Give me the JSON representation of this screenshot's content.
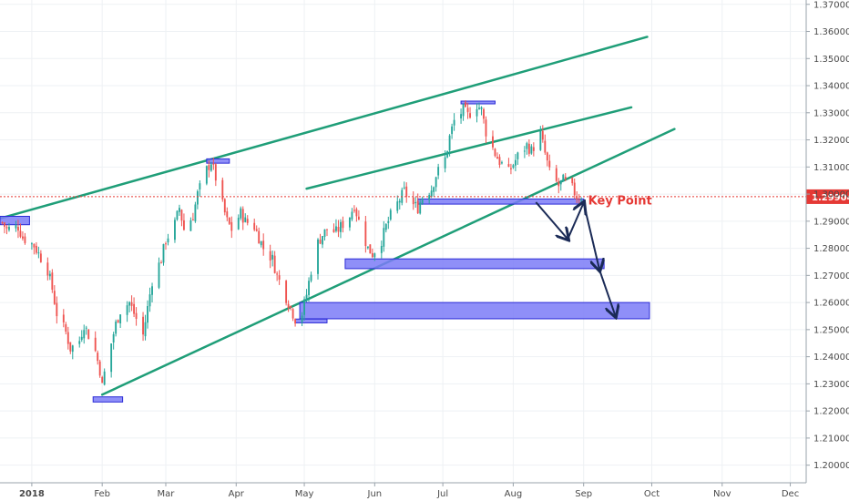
{
  "chart_data": {
    "type": "candlestick",
    "title": "",
    "xlabel": "",
    "ylabel": "",
    "x_tick_labels": [
      "2018",
      "Feb",
      "Mar",
      "Apr",
      "May",
      "Jun",
      "Jul",
      "Aug",
      "Sep",
      "Oct",
      "Nov",
      "Dec"
    ],
    "x_tick_dates": [
      "2018-01-01",
      "2018-02-01",
      "2018-03-01",
      "2018-04-01",
      "2018-05-01",
      "2018-06-01",
      "2018-07-01",
      "2018-08-01",
      "2018-09-01",
      "2018-10-01",
      "2018-11-01",
      "2018-12-01"
    ],
    "x_range": [
      "2017-12-18",
      "2018-12-08"
    ],
    "y_tick_labels": [
      "1.20000",
      "1.21000",
      "1.22000",
      "1.23000",
      "1.24000",
      "1.25000",
      "1.26000",
      "1.27000",
      "1.28000",
      "1.29000",
      "1.30000",
      "1.31000",
      "1.32000",
      "1.33000",
      "1.34000",
      "1.35000",
      "1.36000",
      "1.37000"
    ],
    "y_range": [
      1.1935,
      1.3716
    ],
    "grid": true,
    "current_price": {
      "value": 1.29904,
      "label": "1.29904",
      "color": "#e53935"
    },
    "colors": {
      "up": "#26a69a",
      "down": "#ef5350",
      "trendline": "#1f9e78",
      "zone_fill": "#7b7bf7",
      "zone_edge": "#2b2bd6",
      "arrow": "#1a2a56",
      "annotation": "#e53935"
    },
    "closes": [
      [
        "2017-12-19",
        1.2895
      ],
      [
        "2017-12-21",
        1.287
      ],
      [
        "2017-12-26",
        1.288
      ],
      [
        "2017-12-28",
        1.284
      ],
      [
        "2018-01-02",
        1.281
      ],
      [
        "2018-01-04",
        1.278
      ],
      [
        "2018-01-08",
        1.272
      ],
      [
        "2018-01-10",
        1.265
      ],
      [
        "2018-01-12",
        1.256
      ],
      [
        "2018-01-16",
        1.249
      ],
      [
        "2018-01-18",
        1.243
      ],
      [
        "2018-01-22",
        1.246
      ],
      [
        "2018-01-24",
        1.252
      ],
      [
        "2018-01-26",
        1.248
      ],
      [
        "2018-01-29",
        1.242
      ],
      [
        "2018-01-31",
        1.235
      ],
      [
        "2018-02-01",
        1.229
      ],
      [
        "2018-02-02",
        1.234
      ],
      [
        "2018-02-05",
        1.245
      ],
      [
        "2018-02-07",
        1.252
      ],
      [
        "2018-02-09",
        1.257
      ],
      [
        "2018-02-13",
        1.26
      ],
      [
        "2018-02-15",
        1.256
      ],
      [
        "2018-02-19",
        1.248
      ],
      [
        "2018-02-21",
        1.258
      ],
      [
        "2018-02-23",
        1.268
      ],
      [
        "2018-02-27",
        1.276
      ],
      [
        "2018-03-01",
        1.283
      ],
      [
        "2018-03-05",
        1.289
      ],
      [
        "2018-03-07",
        1.295
      ],
      [
        "2018-03-09",
        1.287
      ],
      [
        "2018-03-13",
        1.292
      ],
      [
        "2018-03-15",
        1.3
      ],
      [
        "2018-03-19",
        1.309
      ],
      [
        "2018-03-21",
        1.312
      ],
      [
        "2018-03-23",
        1.306
      ],
      [
        "2018-03-26",
        1.296
      ],
      [
        "2018-03-28",
        1.29
      ],
      [
        "2018-03-30",
        1.287
      ],
      [
        "2018-04-03",
        1.293
      ],
      [
        "2018-04-05",
        1.29
      ],
      [
        "2018-04-09",
        1.288
      ],
      [
        "2018-04-11",
        1.284
      ],
      [
        "2018-04-13",
        1.28
      ],
      [
        "2018-04-17",
        1.276
      ],
      [
        "2018-04-19",
        1.27
      ],
      [
        "2018-04-23",
        1.262
      ],
      [
        "2018-04-25",
        1.258
      ],
      [
        "2018-04-27",
        1.254
      ],
      [
        "2018-04-30",
        1.256
      ],
      [
        "2018-05-02",
        1.263
      ],
      [
        "2018-05-04",
        1.272
      ],
      [
        "2018-05-07",
        1.282
      ],
      [
        "2018-05-09",
        1.285
      ],
      [
        "2018-05-11",
        1.287
      ],
      [
        "2018-05-15",
        1.286
      ],
      [
        "2018-05-17",
        1.288
      ],
      [
        "2018-05-21",
        1.292
      ],
      [
        "2018-05-23",
        1.296
      ],
      [
        "2018-05-25",
        1.29
      ],
      [
        "2018-05-29",
        1.28
      ],
      [
        "2018-05-31",
        1.278
      ],
      [
        "2018-06-04",
        1.283
      ],
      [
        "2018-06-06",
        1.288
      ],
      [
        "2018-06-08",
        1.292
      ],
      [
        "2018-06-12",
        1.298
      ],
      [
        "2018-06-14",
        1.301
      ],
      [
        "2018-06-18",
        1.296
      ],
      [
        "2018-06-20",
        1.295
      ],
      [
        "2018-06-22",
        1.299
      ],
      [
        "2018-06-26",
        1.302
      ],
      [
        "2018-06-28",
        1.307
      ],
      [
        "2018-07-02",
        1.313
      ],
      [
        "2018-07-04",
        1.321
      ],
      [
        "2018-07-06",
        1.327
      ],
      [
        "2018-07-10",
        1.331
      ],
      [
        "2018-07-12",
        1.329
      ],
      [
        "2018-07-16",
        1.333
      ],
      [
        "2018-07-18",
        1.331
      ],
      [
        "2018-07-20",
        1.323
      ],
      [
        "2018-07-24",
        1.315
      ],
      [
        "2018-07-26",
        1.312
      ],
      [
        "2018-07-30",
        1.308
      ],
      [
        "2018-08-01",
        1.311
      ],
      [
        "2018-08-03",
        1.314
      ],
      [
        "2018-08-07",
        1.318
      ],
      [
        "2018-08-09",
        1.316
      ],
      [
        "2018-08-13",
        1.322
      ],
      [
        "2018-08-15",
        1.315
      ],
      [
        "2018-08-17",
        1.308
      ],
      [
        "2018-08-21",
        1.303
      ],
      [
        "2018-08-23",
        1.305
      ],
      [
        "2018-08-27",
        1.302
      ],
      [
        "2018-08-29",
        1.299
      ],
      [
        "2018-08-31",
        1.299
      ]
    ],
    "trendlines": [
      {
        "from": [
          "2017-12-18",
          1.291
        ],
        "to": [
          "2018-09-29",
          1.358
        ]
      },
      {
        "from": [
          "2018-05-02",
          1.302
        ],
        "to": [
          "2018-09-22",
          1.332
        ]
      },
      {
        "from": [
          "2018-02-01",
          1.226
        ],
        "to": [
          "2018-10-11",
          1.324
        ]
      }
    ],
    "zones": [
      {
        "x": [
          "2017-12-18",
          "2017-12-31"
        ],
        "y": [
          1.2887,
          1.2918
        ]
      },
      {
        "x": [
          "2018-01-28",
          "2018-02-10"
        ],
        "y": [
          1.2233,
          1.2252
        ]
      },
      {
        "x": [
          "2018-03-19",
          "2018-03-29"
        ],
        "y": [
          1.3114,
          1.313
        ]
      },
      {
        "x": [
          "2018-04-27",
          "2018-05-11"
        ],
        "y": [
          1.2525,
          1.2539
        ]
      },
      {
        "x": [
          "2018-04-29",
          "2018-09-30"
        ],
        "y": [
          1.254,
          1.26
        ]
      },
      {
        "x": [
          "2018-05-19",
          "2018-09-10"
        ],
        "y": [
          1.2725,
          1.2761
        ]
      },
      {
        "x": [
          "2018-06-20",
          "2018-09-01"
        ],
        "y": [
          1.2963,
          1.2982
        ]
      },
      {
        "x": [
          "2018-07-09",
          "2018-07-24"
        ],
        "y": [
          1.3334,
          1.3343
        ]
      }
    ],
    "projection_path": [
      [
        "2018-08-11",
        1.297
      ],
      [
        "2018-08-25",
        1.2834
      ],
      [
        "2018-09-01",
        1.2968
      ],
      [
        "2018-09-08",
        1.272
      ],
      [
        "2018-09-15",
        1.255
      ]
    ],
    "annotations": [
      {
        "text": "Key Point",
        "at": [
          "2018-09-03",
          1.2965
        ]
      }
    ]
  }
}
